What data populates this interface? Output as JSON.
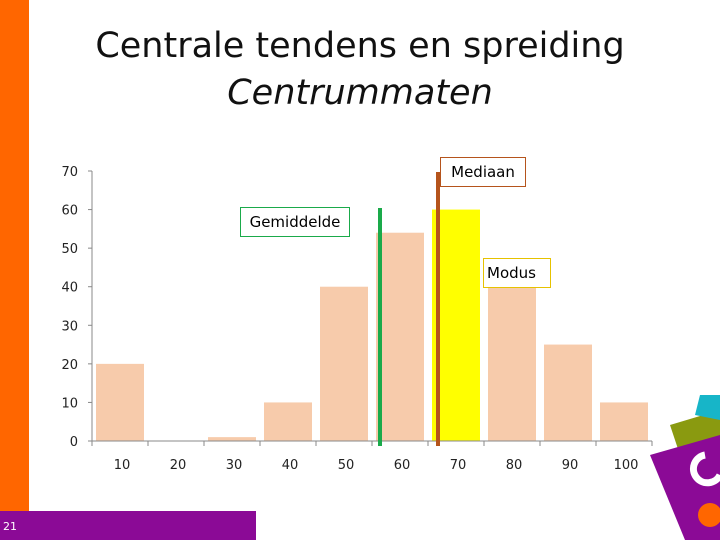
{
  "slide": {
    "title": "Centrale tendens en spreiding",
    "subtitle": "Centrummaten",
    "page_number": "21"
  },
  "callouts": {
    "mediaan": "Mediaan",
    "gemiddelde": "Gemiddelde",
    "modus": "Modus"
  },
  "colors": {
    "orange_bar": "#ff6600",
    "purple_bar": "#8b0a96",
    "bar_fill": "#f7cbab",
    "highlight_fill": "#ffff00",
    "mean_line": "#1aaa4a",
    "median_line": "#b5541c"
  },
  "chart_data": {
    "type": "bar",
    "categories": [
      "10",
      "20",
      "30",
      "40",
      "50",
      "60",
      "70",
      "80",
      "90",
      "100"
    ],
    "values": [
      20,
      0,
      1,
      10,
      40,
      54,
      60,
      40,
      25,
      10
    ],
    "highlighted_category": "70",
    "ylim": [
      0,
      70
    ],
    "yticks": [
      "0",
      "10",
      "20",
      "30",
      "40",
      "50",
      "60",
      "70"
    ],
    "grid": false,
    "annotations": [
      {
        "label": "Gemiddelde",
        "marker": "vertical line",
        "between": [
          "50",
          "60"
        ]
      },
      {
        "label": "Mediaan",
        "marker": "vertical line",
        "between": [
          "60",
          "70"
        ]
      },
      {
        "label": "Modus",
        "marker": "box",
        "category": "70"
      }
    ]
  }
}
